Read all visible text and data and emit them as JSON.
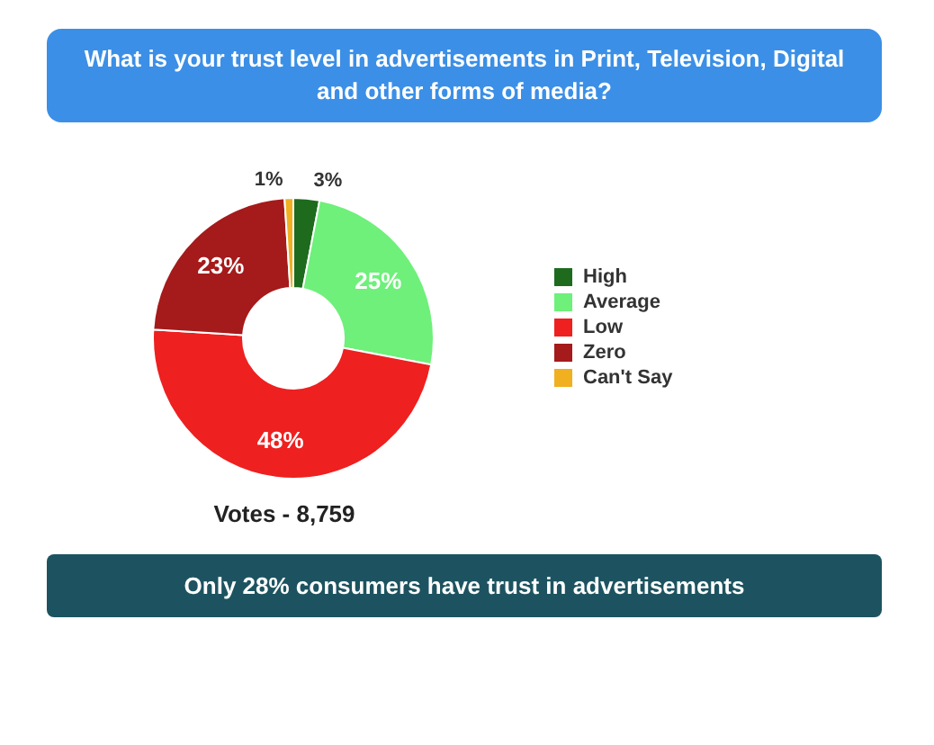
{
  "chart_data": {
    "type": "donut",
    "title": "What is your trust level in advertisements in Print, Television, Digital and other forms of media?",
    "categories": [
      "High",
      "Average",
      "Low",
      "Zero",
      "Can't Say"
    ],
    "values": [
      3,
      25,
      48,
      23,
      1
    ],
    "colors": [
      "#1e6b1e",
      "#6ef07a",
      "#ee2020",
      "#a51a1a",
      "#f0b020"
    ],
    "value_labels": [
      "3%",
      "25%",
      "48%",
      "23%",
      "1%"
    ],
    "legend": "right",
    "annotations": [
      "Votes - 8,759",
      "Only 28% consumers have trust in advertisements"
    ]
  }
}
